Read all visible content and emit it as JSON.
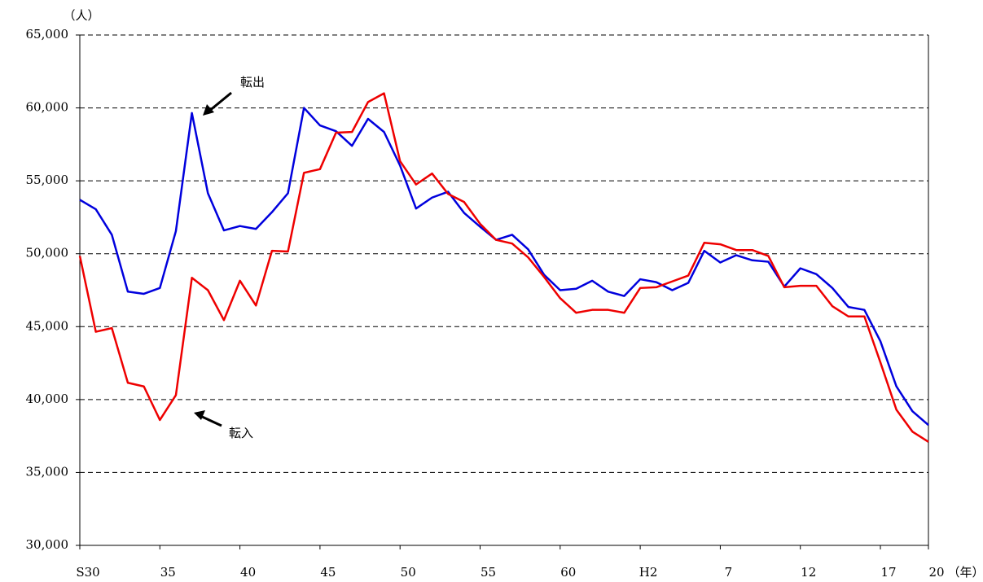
{
  "chart_data": {
    "type": "line",
    "y_axis_label": "（人）",
    "x_axis_label": "（年）",
    "annotations": [
      "転出",
      "転入"
    ],
    "categories": [
      "S30",
      null,
      null,
      null,
      null,
      "35",
      null,
      null,
      null,
      null,
      "40",
      null,
      null,
      null,
      null,
      "45",
      null,
      null,
      null,
      null,
      "50",
      null,
      null,
      null,
      null,
      "55",
      null,
      null,
      null,
      null,
      "60",
      null,
      null,
      null,
      null,
      "H2",
      null,
      null,
      null,
      null,
      "7",
      null,
      null,
      null,
      null,
      "12",
      null,
      null,
      null,
      null,
      "17",
      null,
      null,
      "20"
    ],
    "series": [
      {
        "name": "転出",
        "color": "#0000dd",
        "values": [
          53700,
          53050,
          51300,
          47400,
          47250,
          47650,
          51550,
          59650,
          54150,
          51600,
          51900,
          51700,
          52850,
          54150,
          60000,
          58800,
          58400,
          57400,
          59250,
          58350,
          56050,
          53100,
          53850,
          54250,
          52800,
          51850,
          50950,
          51300,
          50300,
          48550,
          47500,
          47600,
          48150,
          47400,
          47100,
          48250,
          48050,
          47500,
          48000,
          50200,
          49400,
          49900,
          49550,
          49450,
          47750,
          49000,
          48600,
          47650,
          46350,
          46150,
          44000,
          40900,
          39200,
          38250
        ]
      },
      {
        "name": "転入",
        "color": "#ee0000",
        "values": [
          49850,
          44650,
          44900,
          41150,
          40900,
          38600,
          40300,
          48350,
          47500,
          45450,
          48150,
          46450,
          50200,
          50150,
          55550,
          55800,
          58300,
          58350,
          60400,
          61000,
          56350,
          54750,
          55500,
          54100,
          53550,
          52050,
          50950,
          50700,
          49750,
          48400,
          46950,
          45950,
          46150,
          46150,
          45950,
          47650,
          47700,
          48100,
          48500,
          50750,
          50650,
          50250,
          50250,
          49850,
          47700,
          47800,
          47800,
          46400,
          45700,
          45700,
          42550,
          39300,
          37800,
          37100
        ]
      }
    ],
    "ylim": [
      30000,
      65000
    ],
    "yticks": [
      {
        "value": 30000,
        "label": "30,000"
      },
      {
        "value": 35000,
        "label": "35,000"
      },
      {
        "value": 40000,
        "label": "40,000"
      },
      {
        "value": 45000,
        "label": "45,000"
      },
      {
        "value": 50000,
        "label": "50,000"
      },
      {
        "value": 55000,
        "label": "55,000"
      },
      {
        "value": 60000,
        "label": "60,000"
      },
      {
        "value": 65000,
        "label": "65,000"
      }
    ],
    "grid": true
  }
}
